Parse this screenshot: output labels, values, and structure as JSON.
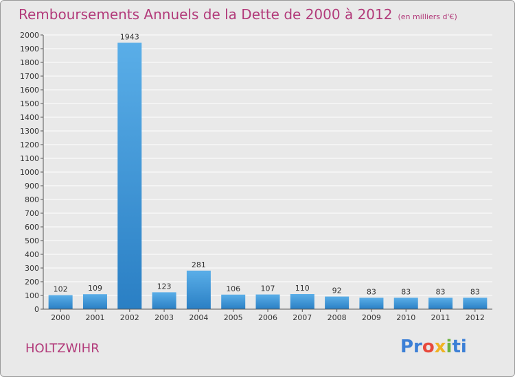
{
  "header": {
    "title": "Remboursements Annuels de la Dette de 2000 à 2012",
    "unit": "(en milliers d'€)"
  },
  "footer": {
    "commune": "HOLTZWIHR",
    "logo_text": "Proxiti"
  },
  "colors": {
    "bar_light": "#5aaee8",
    "bar_dark": "#2a7fc4",
    "title": "#b23a7a",
    "grid": "#ffffff",
    "background": "#e9e9e9"
  },
  "chart_data": {
    "type": "bar",
    "categories": [
      "2000",
      "2001",
      "2002",
      "2003",
      "2004",
      "2005",
      "2006",
      "2007",
      "2008",
      "2009",
      "2010",
      "2011",
      "2012"
    ],
    "values": [
      102,
      109,
      1943,
      123,
      281,
      106,
      107,
      110,
      92,
      83,
      83,
      83,
      83
    ],
    "ylim": [
      0,
      2000
    ],
    "ytick_step": 100,
    "grid": true,
    "data_labels": true
  }
}
